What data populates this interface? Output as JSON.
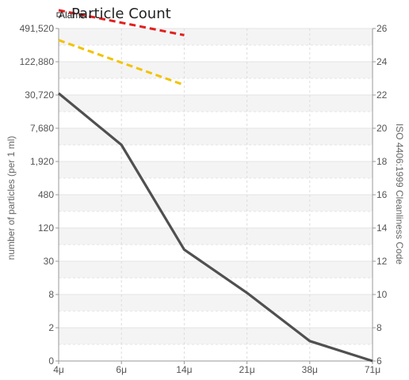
{
  "chart_data": {
    "type": "line",
    "title": "Particle Count",
    "legend": {
      "position": "top-left",
      "entries": [
        "Alarm"
      ]
    },
    "xlabel": "",
    "ylabel_left": "number of particles (per 1 ml)",
    "ylabel_right": "ISO 4406:1999 Cleanliness Code",
    "categories": [
      "4μ",
      "6μ",
      "14μ",
      "21μ",
      "38μ",
      "71μ"
    ],
    "y_left_ticks": [
      "0",
      "2",
      "8",
      "30",
      "120",
      "480",
      "1,920",
      "7,680",
      "30,720",
      "122,880",
      "491,520"
    ],
    "y_right_ticks": [
      "6",
      "8",
      "10",
      "12",
      "14",
      "16",
      "18",
      "20",
      "22",
      "24",
      "26"
    ],
    "y_right_range": [
      6,
      26
    ],
    "series": [
      {
        "name": "Alarm",
        "color": "#e02020",
        "style": "dashed",
        "points": [
          {
            "x": "4μ",
            "code": 27.1
          },
          {
            "x": "14μ",
            "code": 25.6
          }
        ]
      },
      {
        "color": "#f2c200",
        "style": "dashed",
        "points": [
          {
            "x": "4μ",
            "code": 25.3
          },
          {
            "x": "14μ",
            "code": 22.6
          }
        ]
      },
      {
        "color": "#505050",
        "style": "solid",
        "points": [
          {
            "x": "4μ",
            "code": 22.1
          },
          {
            "x": "6μ",
            "code": 19.0
          },
          {
            "x": "14μ",
            "code": 12.7
          },
          {
            "x": "21μ",
            "code": 10.1
          },
          {
            "x": "38μ",
            "code": 7.2
          },
          {
            "x": "71μ",
            "code": 6.0
          }
        ]
      }
    ],
    "grid": true
  }
}
